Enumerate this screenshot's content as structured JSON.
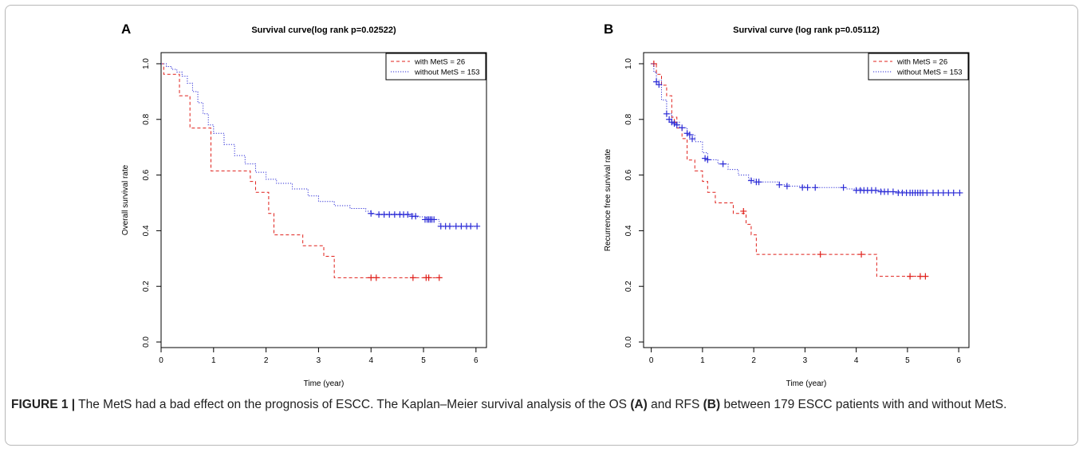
{
  "chart_data": [
    {
      "panel_label": "A",
      "type": "line",
      "title": "Survival curve(log rank p=0.02522)",
      "xlabel": "Time (year)",
      "ylabel": "Overall survival rate",
      "xlim": [
        0,
        6.2
      ],
      "ylim": [
        -0.02,
        1.04
      ],
      "x_ticks": [
        "0",
        "1",
        "2",
        "3",
        "4",
        "5",
        "6"
      ],
      "y_ticks": [
        "0.0",
        "0.2",
        "0.4",
        "0.6",
        "0.8",
        "1.0"
      ],
      "legend_position": "top-right",
      "series": [
        {
          "name": "with MetS = 26",
          "color": "#e0201b",
          "line_style": "dashed",
          "step_points": [
            [
              0,
              1.0
            ],
            [
              0.05,
              0.962
            ],
            [
              0.35,
              0.885
            ],
            [
              0.55,
              0.769
            ],
            [
              0.95,
              0.615
            ],
            [
              1.7,
              0.577
            ],
            [
              1.8,
              0.538
            ],
            [
              2.05,
              0.462
            ],
            [
              2.15,
              0.385
            ],
            [
              2.7,
              0.346
            ],
            [
              3.1,
              0.308
            ],
            [
              3.3,
              0.231
            ],
            [
              5.3,
              0.231
            ]
          ],
          "censored": [
            [
              4.0,
              0.231
            ],
            [
              4.1,
              0.231
            ],
            [
              4.8,
              0.231
            ],
            [
              5.05,
              0.231
            ],
            [
              5.1,
              0.231
            ],
            [
              5.3,
              0.231
            ]
          ]
        },
        {
          "name": "without MetS = 153",
          "color": "#2b2bd6",
          "line_style": "dotted",
          "step_points": [
            [
              0,
              1.0
            ],
            [
              0.1,
              0.99
            ],
            [
              0.2,
              0.98
            ],
            [
              0.3,
              0.97
            ],
            [
              0.4,
              0.955
            ],
            [
              0.5,
              0.93
            ],
            [
              0.6,
              0.9
            ],
            [
              0.7,
              0.86
            ],
            [
              0.8,
              0.82
            ],
            [
              0.9,
              0.78
            ],
            [
              1.0,
              0.75
            ],
            [
              1.2,
              0.71
            ],
            [
              1.4,
              0.67
            ],
            [
              1.6,
              0.64
            ],
            [
              1.8,
              0.61
            ],
            [
              2.0,
              0.585
            ],
            [
              2.2,
              0.57
            ],
            [
              2.5,
              0.55
            ],
            [
              2.8,
              0.525
            ],
            [
              3.0,
              0.505
            ],
            [
              3.3,
              0.49
            ],
            [
              3.6,
              0.48
            ],
            [
              3.9,
              0.47
            ],
            [
              4.0,
              0.46
            ],
            [
              4.8,
              0.45
            ],
            [
              5.05,
              0.44
            ],
            [
              5.3,
              0.415
            ],
            [
              6.05,
              0.415
            ]
          ],
          "censored": [
            [
              4.0,
              0.462
            ],
            [
              4.15,
              0.458
            ],
            [
              4.25,
              0.458
            ],
            [
              4.35,
              0.458
            ],
            [
              4.45,
              0.458
            ],
            [
              4.55,
              0.458
            ],
            [
              4.62,
              0.458
            ],
            [
              4.7,
              0.458
            ],
            [
              4.78,
              0.452
            ],
            [
              4.85,
              0.452
            ],
            [
              5.03,
              0.44
            ],
            [
              5.07,
              0.44
            ],
            [
              5.1,
              0.44
            ],
            [
              5.13,
              0.44
            ],
            [
              5.16,
              0.44
            ],
            [
              5.2,
              0.44
            ],
            [
              5.33,
              0.416
            ],
            [
              5.42,
              0.416
            ],
            [
              5.5,
              0.416
            ],
            [
              5.62,
              0.416
            ],
            [
              5.72,
              0.416
            ],
            [
              5.82,
              0.416
            ],
            [
              5.9,
              0.416
            ],
            [
              6.02,
              0.416
            ]
          ]
        }
      ]
    },
    {
      "panel_label": "B",
      "type": "line",
      "title": "Survival curve (log rank p=0.05112)",
      "xlabel": "Time (year)",
      "ylabel": "Recurrence free survival rate",
      "xlim": [
        -0.15,
        6.2
      ],
      "ylim": [
        -0.02,
        1.04
      ],
      "x_ticks": [
        "0",
        "1",
        "2",
        "3",
        "4",
        "5",
        "6"
      ],
      "y_ticks": [
        "0.0",
        "0.2",
        "0.4",
        "0.6",
        "0.8",
        "1.0"
      ],
      "legend_position": "top-right",
      "series": [
        {
          "name": "with MetS = 26",
          "color": "#e0201b",
          "line_style": "dashed",
          "step_points": [
            [
              0,
              1.0
            ],
            [
              0.1,
              0.962
            ],
            [
              0.2,
              0.923
            ],
            [
              0.3,
              0.885
            ],
            [
              0.4,
              0.808
            ],
            [
              0.5,
              0.769
            ],
            [
              0.6,
              0.731
            ],
            [
              0.7,
              0.654
            ],
            [
              0.85,
              0.615
            ],
            [
              1.0,
              0.577
            ],
            [
              1.1,
              0.538
            ],
            [
              1.25,
              0.5
            ],
            [
              1.6,
              0.462
            ],
            [
              1.85,
              0.423
            ],
            [
              1.95,
              0.385
            ],
            [
              2.05,
              0.315
            ],
            [
              4.4,
              0.236
            ],
            [
              5.35,
              0.236
            ]
          ],
          "censored": [
            [
              0.05,
              1.0
            ],
            [
              0.45,
              0.79
            ],
            [
              1.8,
              0.47
            ],
            [
              3.3,
              0.315
            ],
            [
              4.1,
              0.315
            ],
            [
              5.05,
              0.236
            ],
            [
              5.25,
              0.236
            ],
            [
              5.35,
              0.236
            ]
          ]
        },
        {
          "name": "without MetS = 153",
          "color": "#2b2bd6",
          "line_style": "dotted",
          "step_points": [
            [
              0,
              1.0
            ],
            [
              0.05,
              0.97
            ],
            [
              0.1,
              0.94
            ],
            [
              0.2,
              0.87
            ],
            [
              0.3,
              0.82
            ],
            [
              0.4,
              0.79
            ],
            [
              0.55,
              0.77
            ],
            [
              0.7,
              0.745
            ],
            [
              0.85,
              0.72
            ],
            [
              1.0,
              0.68
            ],
            [
              1.1,
              0.655
            ],
            [
              1.3,
              0.64
            ],
            [
              1.5,
              0.62
            ],
            [
              1.7,
              0.6
            ],
            [
              1.9,
              0.585
            ],
            [
              2.05,
              0.575
            ],
            [
              2.5,
              0.565
            ],
            [
              2.7,
              0.56
            ],
            [
              3.0,
              0.555
            ],
            [
              3.8,
              0.55
            ],
            [
              4.1,
              0.545
            ],
            [
              4.5,
              0.54
            ],
            [
              5.0,
              0.536
            ],
            [
              6.05,
              0.536
            ]
          ],
          "censored": [
            [
              0.1,
              0.935
            ],
            [
              0.15,
              0.925
            ],
            [
              0.3,
              0.82
            ],
            [
              0.35,
              0.8
            ],
            [
              0.4,
              0.79
            ],
            [
              0.45,
              0.785
            ],
            [
              0.5,
              0.78
            ],
            [
              0.6,
              0.77
            ],
            [
              0.7,
              0.75
            ],
            [
              0.75,
              0.745
            ],
            [
              0.8,
              0.73
            ],
            [
              1.05,
              0.66
            ],
            [
              1.1,
              0.655
            ],
            [
              1.4,
              0.64
            ],
            [
              1.95,
              0.58
            ],
            [
              2.05,
              0.575
            ],
            [
              2.1,
              0.575
            ],
            [
              2.5,
              0.565
            ],
            [
              2.65,
              0.56
            ],
            [
              2.95,
              0.555
            ],
            [
              3.05,
              0.555
            ],
            [
              3.2,
              0.555
            ],
            [
              3.75,
              0.555
            ],
            [
              4.0,
              0.545
            ],
            [
              4.08,
              0.545
            ],
            [
              4.15,
              0.545
            ],
            [
              4.22,
              0.545
            ],
            [
              4.3,
              0.545
            ],
            [
              4.38,
              0.545
            ],
            [
              4.48,
              0.54
            ],
            [
              4.55,
              0.54
            ],
            [
              4.62,
              0.54
            ],
            [
              4.72,
              0.54
            ],
            [
              4.82,
              0.536
            ],
            [
              4.9,
              0.536
            ],
            [
              4.98,
              0.536
            ],
            [
              5.05,
              0.536
            ],
            [
              5.1,
              0.536
            ],
            [
              5.15,
              0.536
            ],
            [
              5.2,
              0.536
            ],
            [
              5.25,
              0.536
            ],
            [
              5.3,
              0.536
            ],
            [
              5.38,
              0.536
            ],
            [
              5.5,
              0.536
            ],
            [
              5.6,
              0.536
            ],
            [
              5.7,
              0.536
            ],
            [
              5.8,
              0.536
            ],
            [
              5.9,
              0.536
            ],
            [
              6.02,
              0.536
            ]
          ]
        }
      ]
    }
  ],
  "caption": {
    "figure_label": "FIGURE 1 |",
    "text_1": " The MetS had a bad effect on the prognosis of ESCC. The Kaplan–Meier survival analysis of the OS ",
    "ref_a": "(A)",
    "text_2": " and RFS ",
    "ref_b": "(B)",
    "text_3": " between 179 ESCC patients with and without MetS."
  }
}
